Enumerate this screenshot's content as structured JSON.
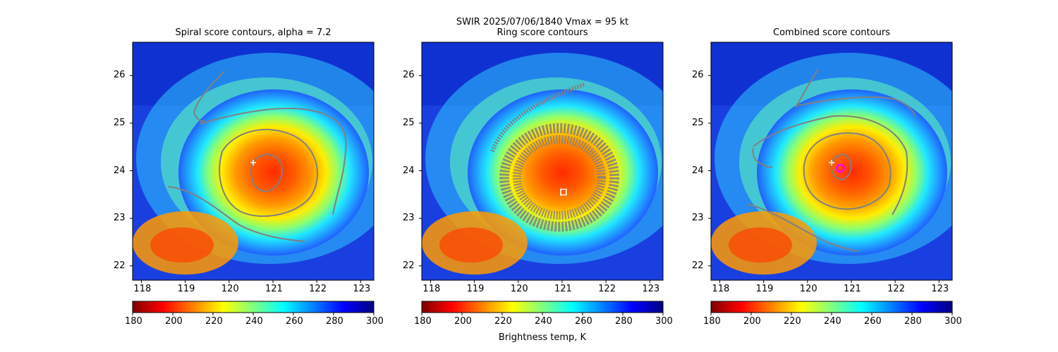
{
  "figure": {
    "suptitle": "SWIR  2025/07/06/1840    Vmax = 95 kt"
  },
  "chart_data": [
    {
      "type": "heatmap",
      "title": "Spiral score contours, alpha =  7.2",
      "xlim": [
        117.8,
        123.3
      ],
      "ylim": [
        21.7,
        26.7
      ],
      "xticks": [
        "118",
        "119",
        "120",
        "121",
        "122",
        "123"
      ],
      "yticks": [
        "22",
        "23",
        "24",
        "25",
        "26"
      ],
      "contour_color": "#808080",
      "marker": {
        "shape": "plus",
        "lon": 120.55,
        "lat": 24.17,
        "color": "#ffffff"
      }
    },
    {
      "type": "heatmap",
      "title": "Ring score contours",
      "xlim": [
        117.8,
        123.3
      ],
      "ylim": [
        21.7,
        26.7
      ],
      "xticks": [
        "118",
        "119",
        "120",
        "121",
        "122",
        "123"
      ],
      "yticks": [
        "22",
        "23",
        "24",
        "25",
        "26"
      ],
      "contour_color": "#808080",
      "marker": {
        "shape": "square",
        "lon": 121.03,
        "lat": 23.55,
        "color": "#ffffff"
      }
    },
    {
      "type": "heatmap",
      "title": "Combined score contours",
      "xlim": [
        117.8,
        123.3
      ],
      "ylim": [
        21.7,
        26.7
      ],
      "xticks": [
        "118",
        "119",
        "120",
        "121",
        "122",
        "123"
      ],
      "yticks": [
        "22",
        "23",
        "24",
        "25",
        "26"
      ],
      "contour_color": "#808080",
      "marker": {
        "shape": "plus",
        "lon": 120.55,
        "lat": 24.17,
        "color": "#ffffff"
      },
      "center_marker": {
        "shape": "circle",
        "lon": 120.75,
        "lat": 24.05,
        "color": "#ff00ff"
      }
    }
  ],
  "colorbar": {
    "min": 180,
    "max": 300,
    "ticks": [
      "180",
      "200",
      "220",
      "240",
      "260",
      "280",
      "300"
    ],
    "label": "Brightness temp, K",
    "colormap": [
      "#800000",
      "#ff0000",
      "#ff8000",
      "#ffff00",
      "#80ff80",
      "#00ffff",
      "#0080ff",
      "#0000ff",
      "#000080"
    ]
  }
}
